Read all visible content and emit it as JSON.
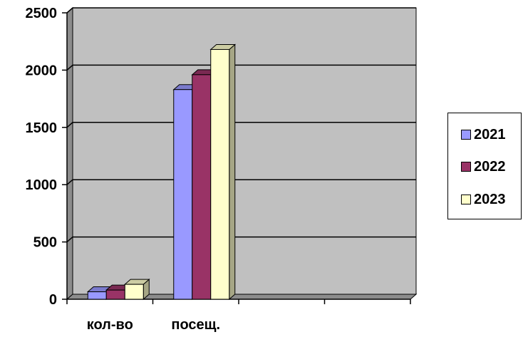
{
  "chart_data": {
    "type": "bar",
    "categories": [
      "кол-во",
      "посещ.",
      "",
      ""
    ],
    "series": [
      {
        "name": "2021",
        "values": [
          65,
          1830,
          null,
          null
        ],
        "color": "#9999ff"
      },
      {
        "name": "2022",
        "values": [
          80,
          1960,
          null,
          null
        ],
        "color": "#993366"
      },
      {
        "name": "2023",
        "values": [
          130,
          2180,
          null,
          null
        ],
        "color": "#ffffcc"
      }
    ],
    "ylim": [
      0,
      2500
    ],
    "yticks": [
      "0",
      "500",
      "1000",
      "1500",
      "2000",
      "2500"
    ],
    "grid": true,
    "plot_background": "#c0c0c0",
    "legend_position": "right",
    "style": "3d"
  }
}
